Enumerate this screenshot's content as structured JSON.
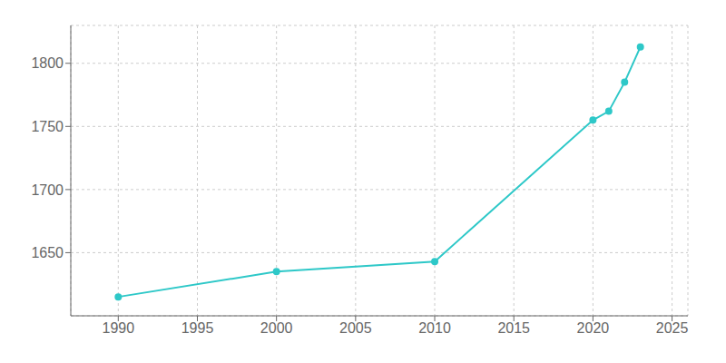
{
  "chart_data": {
    "type": "line",
    "x": [
      1990,
      2000,
      2010,
      2020,
      2021,
      2022,
      2023
    ],
    "values": [
      1615,
      1635,
      1643,
      1755,
      1762,
      1785,
      1813
    ],
    "color": "#2ec8c8",
    "marker": "o",
    "xlim": [
      1987,
      2026
    ],
    "ylim": [
      1600,
      1830
    ],
    "xticks": [
      1990,
      1995,
      2000,
      2005,
      2010,
      2015,
      2020,
      2025
    ],
    "yticks": [
      1650,
      1700,
      1750,
      1800
    ],
    "grid": true
  }
}
